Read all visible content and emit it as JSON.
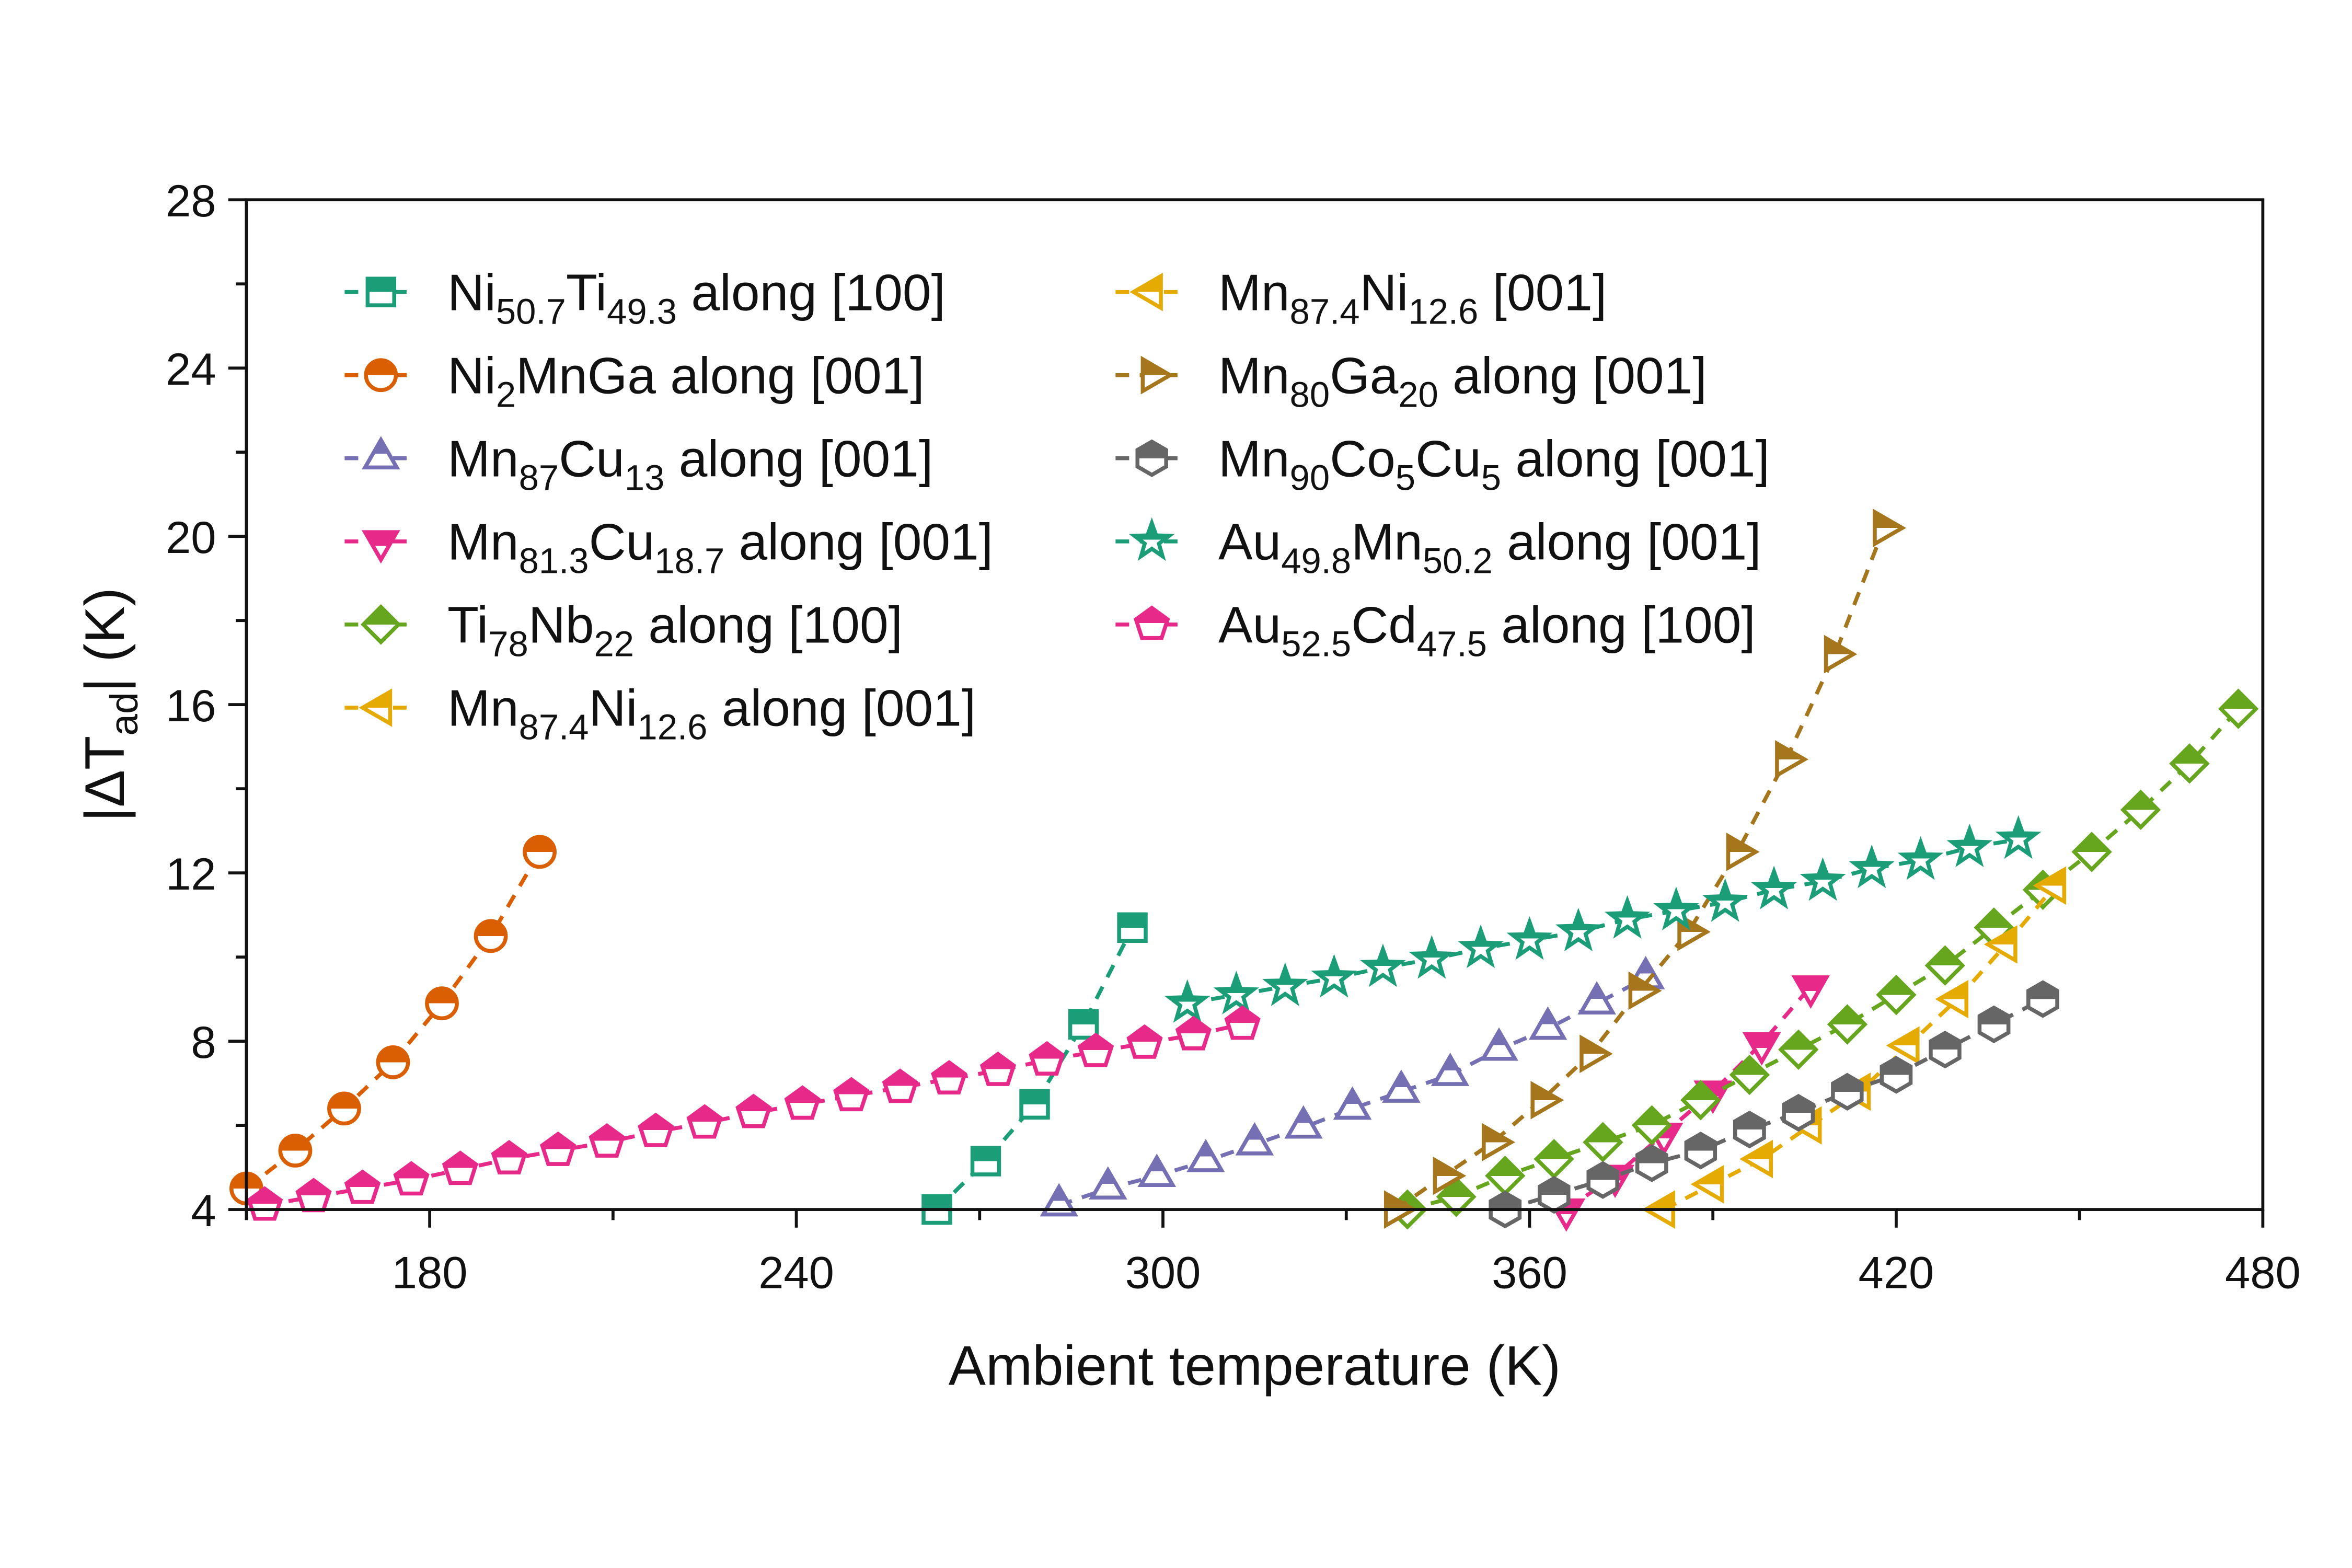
{
  "chart_data": {
    "type": "scatter",
    "title": "",
    "xlabel": "Ambient temperature (K)",
    "ylabel_parts": [
      {
        "t": "|ΔT"
      },
      {
        "sub": "ad"
      },
      {
        "t": "| (K)"
      }
    ],
    "xlim": [
      150,
      480
    ],
    "ylim": [
      4,
      28
    ],
    "xticks": [
      180,
      240,
      300,
      360,
      420,
      480
    ],
    "yticks": [
      4,
      8,
      12,
      16,
      20,
      24,
      28
    ],
    "grid": false,
    "legend_placement": "top-left",
    "marker_style": "half-filled (top filled), dashed connecting line",
    "series": [
      {
        "name_parts": [
          {
            "t": "Ni"
          },
          {
            "sub": "50.7"
          },
          {
            "t": "Ti"
          },
          {
            "sub": "49.3"
          },
          {
            "t": " along [100]"
          }
        ],
        "color": "#1b9e77",
        "marker": "square",
        "x": [
          263,
          271,
          279,
          287,
          295
        ],
        "y": [
          4.0,
          5.15,
          6.5,
          8.4,
          10.7
        ]
      },
      {
        "name_parts": [
          {
            "t": "Ni"
          },
          {
            "sub": "2"
          },
          {
            "t": "MnGa along [001]"
          }
        ],
        "color": "#d95f02",
        "marker": "circle",
        "x": [
          150,
          158,
          166,
          174,
          182,
          190,
          198
        ],
        "y": [
          4.5,
          5.4,
          6.4,
          7.5,
          8.9,
          10.5,
          12.5
        ]
      },
      {
        "name_parts": [
          {
            "t": "Mn"
          },
          {
            "sub": "87"
          },
          {
            "t": "Cu"
          },
          {
            "sub": "13"
          },
          {
            "t": " along [001]"
          }
        ],
        "color": "#7570b3",
        "marker": "triangle-up",
        "x": [
          283,
          291,
          299,
          307,
          315,
          323,
          331,
          339,
          347,
          355,
          363,
          371,
          379
        ],
        "y": [
          4.1,
          4.5,
          4.8,
          5.15,
          5.55,
          5.95,
          6.4,
          6.8,
          7.2,
          7.8,
          8.3,
          8.9,
          9.5
        ]
      },
      {
        "name_parts": [
          {
            "t": "Mn"
          },
          {
            "sub": "81.3"
          },
          {
            "t": "Cu"
          },
          {
            "sub": "18.7"
          },
          {
            "t": " along [001]"
          }
        ],
        "color": "#e7298a",
        "marker": "triangle-down",
        "x": [
          366,
          374,
          382,
          390,
          398,
          406
        ],
        "y": [
          4.0,
          4.8,
          5.8,
          6.8,
          7.95,
          9.3
        ]
      },
      {
        "name_parts": [
          {
            "t": "Ti"
          },
          {
            "sub": "78"
          },
          {
            "t": "Nb"
          },
          {
            "sub": "22"
          },
          {
            "t": " along [100]"
          }
        ],
        "color": "#66a61e",
        "marker": "diamond",
        "x": [
          340,
          348,
          356,
          364,
          372,
          380,
          388,
          396,
          404,
          412,
          420,
          428,
          436,
          444,
          452,
          460,
          468,
          476
        ],
        "y": [
          4.0,
          4.3,
          4.8,
          5.2,
          5.6,
          6.0,
          6.6,
          7.2,
          7.8,
          8.4,
          9.1,
          9.8,
          10.7,
          11.6,
          12.5,
          13.5,
          14.6,
          15.9
        ]
      },
      {
        "name_parts": [
          {
            "t": "Mn"
          },
          {
            "sub": "87.4"
          },
          {
            "t": "Ni"
          },
          {
            "sub": "12.6"
          },
          {
            "t": " along [001]"
          }
        ],
        "color": "#e6ab02",
        "marker": "triangle-left",
        "x": [
          382,
          390,
          398,
          406,
          414,
          422,
          430,
          438,
          446
        ],
        "y": [
          4.0,
          4.6,
          5.2,
          6.0,
          6.8,
          7.9,
          9.0,
          10.3,
          11.7
        ]
      },
      {
        "name_parts": [
          {
            "t": "Mn"
          },
          {
            "sub": "87.4"
          },
          {
            "t": "Ni"
          },
          {
            "sub": "12.6"
          },
          {
            "t": " [001]"
          }
        ],
        "color": "#e6ab02",
        "marker": "triangle-left",
        "x": [],
        "y": []
      },
      {
        "name_parts": [
          {
            "t": "Mn"
          },
          {
            "sub": "80"
          },
          {
            "t": "Ga"
          },
          {
            "sub": "20"
          },
          {
            "t": " along [001]"
          }
        ],
        "color": "#a6761d",
        "marker": "triangle-right",
        "x": [
          338,
          346,
          354,
          362,
          370,
          378,
          386,
          394,
          402,
          410,
          418
        ],
        "y": [
          4.0,
          4.8,
          5.6,
          6.6,
          7.7,
          9.2,
          10.6,
          12.5,
          14.7,
          17.2,
          20.2
        ]
      },
      {
        "name_parts": [
          {
            "t": "Mn"
          },
          {
            "sub": "90"
          },
          {
            "t": "Co"
          },
          {
            "sub": "5"
          },
          {
            "t": "Cu"
          },
          {
            "sub": "5"
          },
          {
            "t": " along [001]"
          }
        ],
        "color": "#666666",
        "marker": "hexagon",
        "x": [
          356,
          364,
          372,
          380,
          388,
          396,
          404,
          412,
          420,
          428,
          436,
          444
        ],
        "y": [
          4.0,
          4.35,
          4.7,
          5.1,
          5.4,
          5.9,
          6.3,
          6.8,
          7.2,
          7.8,
          8.4,
          9.0
        ]
      },
      {
        "name_parts": [
          {
            "t": "Au"
          },
          {
            "sub": "49.8"
          },
          {
            "t": "Mn"
          },
          {
            "sub": "50.2"
          },
          {
            "t": " along [001]"
          }
        ],
        "color": "#1b9e77",
        "marker": "star",
        "x": [
          304,
          312,
          320,
          328,
          336,
          344,
          352,
          360,
          368,
          376,
          384,
          392,
          400,
          408,
          416,
          424,
          432,
          440
        ],
        "y": [
          8.9,
          9.1,
          9.3,
          9.5,
          9.75,
          9.95,
          10.2,
          10.4,
          10.6,
          10.9,
          11.1,
          11.3,
          11.6,
          11.8,
          12.1,
          12.3,
          12.6,
          12.8
        ]
      },
      {
        "name_parts": [
          {
            "t": "Au"
          },
          {
            "sub": "52.5"
          },
          {
            "t": "Cd"
          },
          {
            "sub": "47.5"
          },
          {
            "t": " along [100]"
          }
        ],
        "color": "#e7298a",
        "marker": "pentagon",
        "x": [
          153,
          161,
          169,
          177,
          185,
          193,
          201,
          209,
          217,
          225,
          233,
          241,
          249,
          257,
          265,
          273,
          281,
          289,
          297,
          305,
          313
        ],
        "y": [
          4.1,
          4.3,
          4.5,
          4.7,
          4.95,
          5.2,
          5.4,
          5.6,
          5.85,
          6.05,
          6.3,
          6.5,
          6.7,
          6.9,
          7.1,
          7.3,
          7.55,
          7.75,
          7.95,
          8.15,
          8.4
        ]
      }
    ],
    "legend_columns": [
      [
        0,
        1,
        2,
        3,
        4,
        5
      ],
      [
        6,
        7,
        8,
        9,
        10
      ]
    ]
  }
}
